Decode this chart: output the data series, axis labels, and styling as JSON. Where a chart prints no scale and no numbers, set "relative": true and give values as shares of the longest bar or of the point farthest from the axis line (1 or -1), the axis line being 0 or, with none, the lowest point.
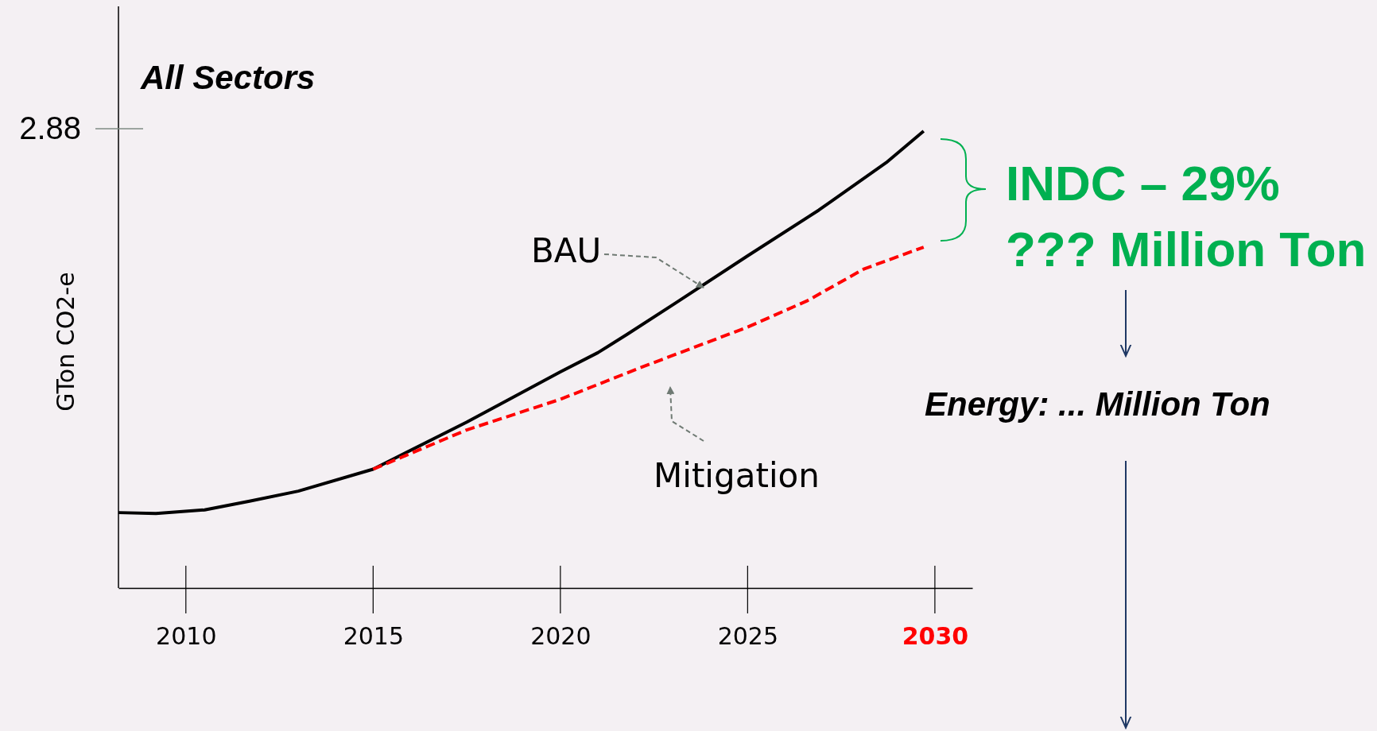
{
  "chart_data": {
    "type": "line",
    "relative": true,
    "ylabel": "GTon CO2-e",
    "xlim": [
      2008.2,
      2031
    ],
    "xticks": [
      2010,
      2015,
      2020,
      2025,
      2030
    ],
    "series": [
      {
        "name": "BAU",
        "color": "#000000",
        "line_style": "solid",
        "x": [
          2008.2,
          2009.2,
          2010.5,
          2011.7,
          2013.0,
          2015,
          2017.5,
          2020,
          2021,
          2021.8,
          2023.1,
          2025,
          2026.9,
          2028.7,
          2029.7
        ],
        "values": [
          0.165,
          0.163,
          0.171,
          0.19,
          0.212,
          0.26,
          0.363,
          0.473,
          0.515,
          0.556,
          0.625,
          0.727,
          0.827,
          0.931,
          1
        ]
      },
      {
        "name": "Mitigation",
        "color": "#ff0000",
        "line_style": "dashed",
        "x": [
          2015,
          2017.5,
          2020,
          2022.1,
          2025,
          2026.6,
          2028.1,
          2029.7
        ],
        "values": [
          0.26,
          0.346,
          0.413,
          0.481,
          0.571,
          0.629,
          0.698,
          0.746
        ]
      }
    ],
    "annotations": [
      "All Sectors",
      "2.88",
      "INDC – 29%",
      "??? Million Ton",
      "Energy: ... Million Ton"
    ]
  }
}
